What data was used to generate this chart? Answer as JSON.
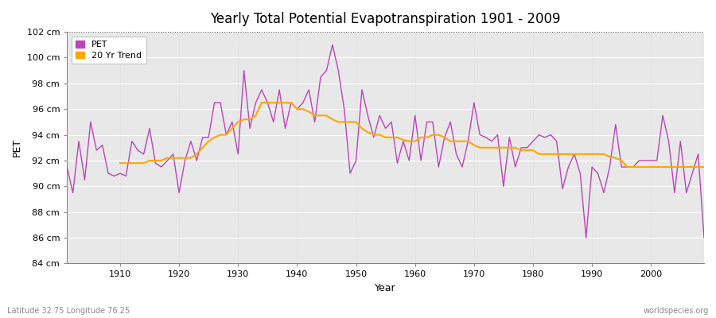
{
  "title": "Yearly Total Potential Evapotranspiration 1901 - 2009",
  "xlabel": "Year",
  "ylabel": "PET",
  "subtitle_left": "Latitude 32.75 Longitude 76.25",
  "subtitle_right": "worldspecies.org",
  "ylim": [
    84,
    102
  ],
  "xlim": [
    1901,
    2009
  ],
  "ytick_labels": [
    "84 cm",
    "86 cm",
    "88 cm",
    "90 cm",
    "92 cm",
    "94 cm",
    "96 cm",
    "98 cm",
    "100 cm",
    "102 cm"
  ],
  "ytick_values": [
    84,
    86,
    88,
    90,
    92,
    94,
    96,
    98,
    100,
    102
  ],
  "xtick_values": [
    1910,
    1920,
    1930,
    1940,
    1950,
    1960,
    1970,
    1980,
    1990,
    2000
  ],
  "hline_y": 102,
  "pet_color": "#bb44bb",
  "trend_color": "#ffa500",
  "bg_color": "#e8e8e8",
  "fig_bg_color": "#ffffff",
  "legend_bg": "#ffffff",
  "grid_color": "#d0d0d0",
  "pet_data": {
    "years": [
      1901,
      1902,
      1903,
      1904,
      1905,
      1906,
      1907,
      1908,
      1909,
      1910,
      1911,
      1912,
      1913,
      1914,
      1915,
      1916,
      1917,
      1918,
      1919,
      1920,
      1921,
      1922,
      1923,
      1924,
      1925,
      1926,
      1927,
      1928,
      1929,
      1930,
      1931,
      1932,
      1933,
      1934,
      1935,
      1936,
      1937,
      1938,
      1939,
      1940,
      1941,
      1942,
      1943,
      1944,
      1945,
      1946,
      1947,
      1948,
      1949,
      1950,
      1951,
      1952,
      1953,
      1954,
      1955,
      1956,
      1957,
      1958,
      1959,
      1960,
      1961,
      1962,
      1963,
      1964,
      1965,
      1966,
      1967,
      1968,
      1969,
      1970,
      1971,
      1972,
      1973,
      1974,
      1975,
      1976,
      1977,
      1978,
      1979,
      1980,
      1981,
      1982,
      1983,
      1984,
      1985,
      1986,
      1987,
      1988,
      1989,
      1990,
      1991,
      1992,
      1993,
      1994,
      1995,
      1996,
      1997,
      1998,
      1999,
      2000,
      2001,
      2002,
      2003,
      2004,
      2005,
      2006,
      2007,
      2008,
      2009
    ],
    "values": [
      91.5,
      89.5,
      93.5,
      90.5,
      95.0,
      92.8,
      93.2,
      91.0,
      90.8,
      91.0,
      90.8,
      93.5,
      92.8,
      92.5,
      94.5,
      91.8,
      91.5,
      92.0,
      92.5,
      89.5,
      92.0,
      93.5,
      92.0,
      93.8,
      93.8,
      96.5,
      96.5,
      94.0,
      95.0,
      92.5,
      99.0,
      94.5,
      96.5,
      97.5,
      96.5,
      95.0,
      97.5,
      94.5,
      96.5,
      96.0,
      96.5,
      97.5,
      95.0,
      98.5,
      99.0,
      101.0,
      99.0,
      96.0,
      91.0,
      92.0,
      97.5,
      95.5,
      93.8,
      95.5,
      94.5,
      95.0,
      91.8,
      93.5,
      92.0,
      95.5,
      92.0,
      95.0,
      95.0,
      91.5,
      93.8,
      95.0,
      92.5,
      91.5,
      93.5,
      96.5,
      94.0,
      93.8,
      93.5,
      94.0,
      90.0,
      93.8,
      91.5,
      93.0,
      93.0,
      93.5,
      94.0,
      93.8,
      94.0,
      93.5,
      89.8,
      91.5,
      92.5,
      91.0,
      86.0,
      91.5,
      91.0,
      89.5,
      91.5,
      94.8,
      91.5,
      91.5,
      91.5,
      92.0,
      92.0,
      92.0,
      92.0,
      95.5,
      93.5,
      89.5,
      93.5,
      89.5,
      91.0,
      92.5,
      86.0
    ]
  },
  "trend_data": {
    "years": [
      1910,
      1911,
      1912,
      1913,
      1914,
      1915,
      1916,
      1917,
      1918,
      1919,
      1920,
      1921,
      1922,
      1923,
      1924,
      1925,
      1926,
      1927,
      1928,
      1929,
      1930,
      1931,
      1932,
      1933,
      1934,
      1935,
      1936,
      1937,
      1938,
      1939,
      1940,
      1941,
      1942,
      1943,
      1944,
      1945,
      1946,
      1947,
      1948,
      1949,
      1950,
      1951,
      1952,
      1953,
      1954,
      1955,
      1956,
      1957,
      1958,
      1959,
      1960,
      1961,
      1962,
      1963,
      1964,
      1965,
      1966,
      1967,
      1968,
      1969,
      1970,
      1971,
      1972,
      1973,
      1974,
      1975,
      1976,
      1977,
      1978,
      1979,
      1980,
      1981,
      1982,
      1983,
      1984,
      1985,
      1986,
      1987,
      1988,
      1989,
      1990,
      1991,
      1992,
      1993,
      1994,
      1995,
      1996,
      1997,
      1998,
      1999,
      2000,
      2001,
      2002,
      2003,
      2004,
      2005,
      2006,
      2007,
      2008,
      2009
    ],
    "values": [
      91.8,
      91.8,
      91.8,
      91.8,
      91.8,
      92.0,
      92.0,
      92.0,
      92.2,
      92.2,
      92.2,
      92.2,
      92.2,
      92.5,
      93.0,
      93.5,
      93.8,
      94.0,
      94.0,
      94.5,
      95.0,
      95.2,
      95.2,
      95.5,
      96.5,
      96.5,
      96.5,
      96.5,
      96.5,
      96.5,
      96.0,
      96.0,
      95.8,
      95.5,
      95.5,
      95.5,
      95.2,
      95.0,
      95.0,
      95.0,
      95.0,
      94.5,
      94.2,
      94.0,
      94.0,
      93.8,
      93.8,
      93.8,
      93.6,
      93.5,
      93.5,
      93.8,
      93.8,
      94.0,
      94.0,
      93.8,
      93.5,
      93.5,
      93.5,
      93.5,
      93.2,
      93.0,
      93.0,
      93.0,
      93.0,
      93.0,
      93.0,
      93.0,
      92.8,
      92.8,
      92.8,
      92.5,
      92.5,
      92.5,
      92.5,
      92.5,
      92.5,
      92.5,
      92.5,
      92.5,
      92.5,
      92.5,
      92.5,
      92.3,
      92.2,
      92.0,
      91.5,
      91.5,
      91.5,
      91.5,
      91.5,
      91.5,
      91.5,
      91.5,
      91.5,
      91.5,
      91.5,
      91.5,
      91.5,
      91.5
    ]
  }
}
